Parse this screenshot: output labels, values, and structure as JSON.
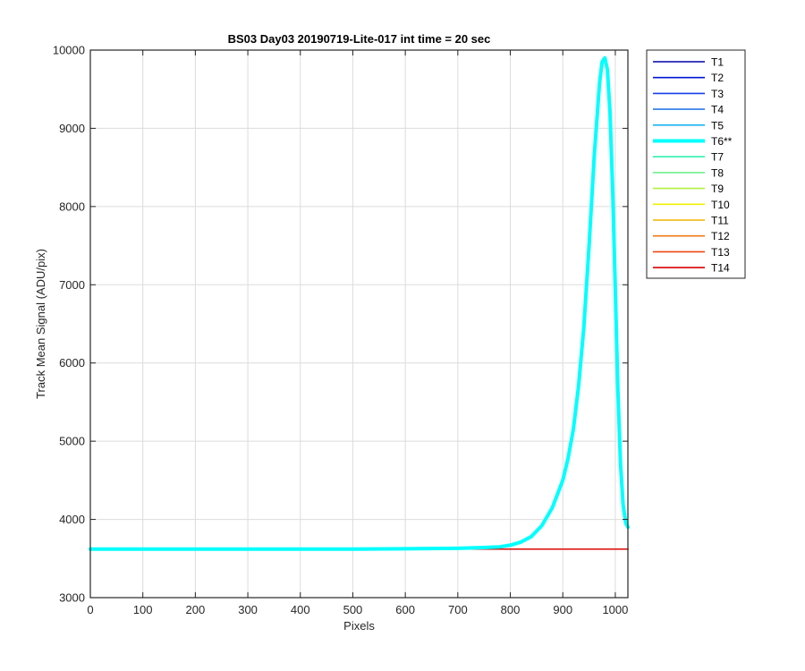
{
  "chart_data": {
    "type": "line",
    "title": "BS03 Day03 20190719-Lite-017 int time = 20 sec",
    "xlabel": "Pixels",
    "ylabel": "Track Mean Signal (ADU/pix)",
    "xlim": [
      0,
      1024
    ],
    "ylim": [
      3000,
      10000
    ],
    "xticks": [
      0,
      100,
      200,
      300,
      400,
      500,
      600,
      700,
      800,
      900,
      1000
    ],
    "yticks": [
      3000,
      4000,
      5000,
      6000,
      7000,
      8000,
      9000,
      10000
    ],
    "grid": true,
    "legend_position": "outside-top-right",
    "series": [
      {
        "name": "T1",
        "color": "#0000aa",
        "x": [
          0,
          1024
        ],
        "y": [
          3620,
          3620
        ]
      },
      {
        "name": "T2",
        "color": "#0014d0",
        "x": [
          0,
          1024
        ],
        "y": [
          3620,
          3620
        ]
      },
      {
        "name": "T3",
        "color": "#1a3ee8",
        "x": [
          0,
          1024
        ],
        "y": [
          3620,
          3620
        ]
      },
      {
        "name": "T4",
        "color": "#2a7ae8",
        "x": [
          0,
          1024
        ],
        "y": [
          3620,
          3620
        ]
      },
      {
        "name": "T5",
        "color": "#1ab4f0",
        "x": [
          0,
          1024
        ],
        "y": [
          3620,
          3620
        ]
      },
      {
        "name": "T6**",
        "color": "#00ffff",
        "highlight": true,
        "x": [
          0,
          100,
          200,
          300,
          400,
          500,
          600,
          700,
          750,
          780,
          800,
          820,
          840,
          860,
          880,
          900,
          910,
          920,
          930,
          940,
          950,
          960,
          970,
          975,
          980,
          985,
          990,
          995,
          1000,
          1005,
          1010,
          1015,
          1020,
          1024
        ],
        "y": [
          3620,
          3620,
          3620,
          3620,
          3620,
          3620,
          3625,
          3630,
          3640,
          3650,
          3670,
          3710,
          3780,
          3920,
          4150,
          4500,
          4780,
          5150,
          5700,
          6450,
          7500,
          8650,
          9580,
          9850,
          9900,
          9750,
          9200,
          8200,
          6950,
          5650,
          4700,
          4180,
          3950,
          3900
        ]
      },
      {
        "name": "T7",
        "color": "#30f0b0",
        "x": [
          0,
          1024
        ],
        "y": [
          3620,
          3620
        ]
      },
      {
        "name": "T8",
        "color": "#6ef08c",
        "x": [
          0,
          1024
        ],
        "y": [
          3620,
          3620
        ]
      },
      {
        "name": "T9",
        "color": "#b4f040",
        "x": [
          0,
          1024
        ],
        "y": [
          3620,
          3620
        ]
      },
      {
        "name": "T10",
        "color": "#f0f000",
        "x": [
          0,
          1024
        ],
        "y": [
          3620,
          3620
        ]
      },
      {
        "name": "T11",
        "color": "#f0b400",
        "x": [
          0,
          1024
        ],
        "y": [
          3620,
          3620
        ]
      },
      {
        "name": "T12",
        "color": "#f07814",
        "x": [
          0,
          1024
        ],
        "y": [
          3620,
          3620
        ]
      },
      {
        "name": "T13",
        "color": "#f04614",
        "x": [
          0,
          1024
        ],
        "y": [
          3620,
          3620
        ]
      },
      {
        "name": "T14",
        "color": "#d80000",
        "x": [
          0,
          1024
        ],
        "y": [
          3620,
          3620
        ]
      }
    ]
  }
}
